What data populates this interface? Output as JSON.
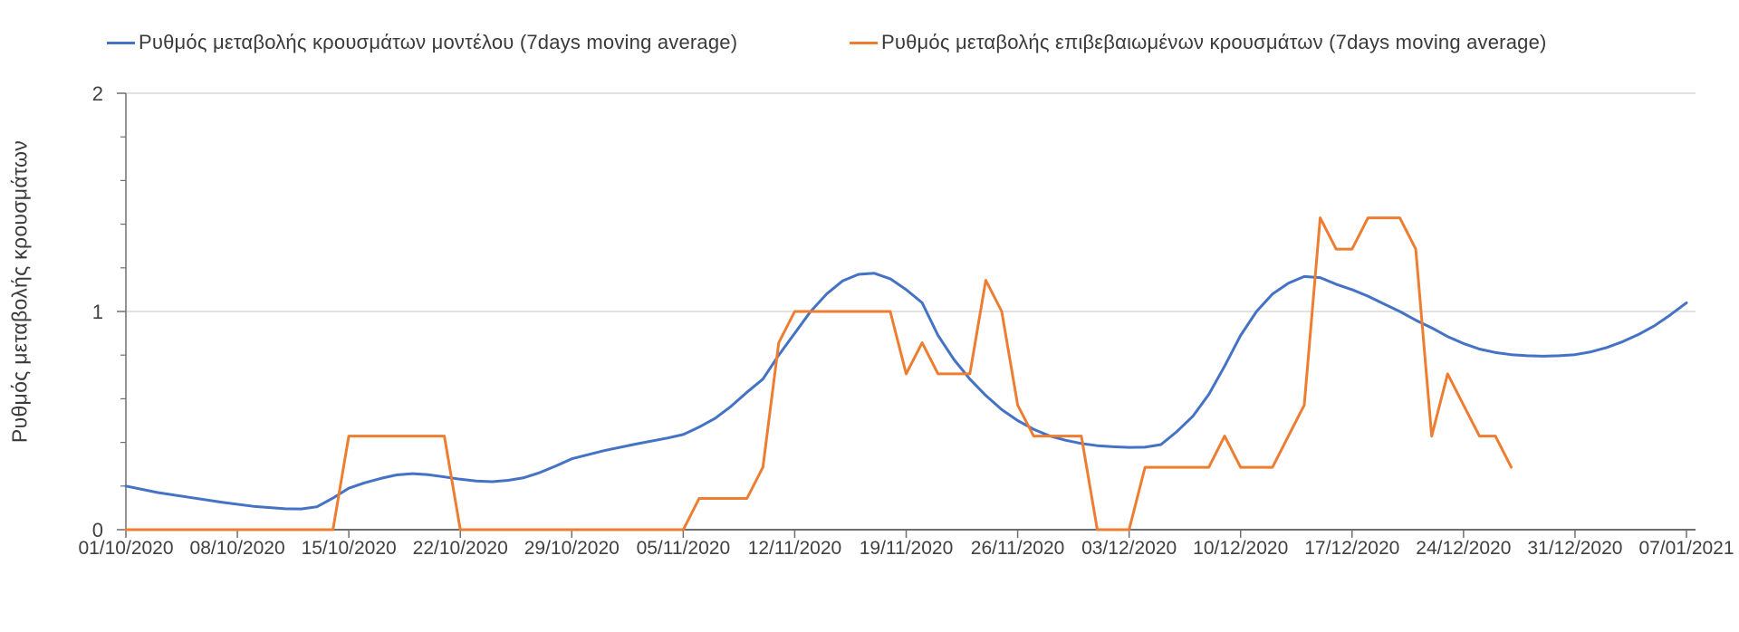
{
  "chart_data": {
    "type": "line",
    "title": "",
    "legend": [
      {
        "label": "Ρυθμός μεταβολής κρουσμάτων μοντέλου (7days moving average)",
        "color": "#4472C4"
      },
      {
        "label": "Ρυθμός μεταβολής επιβεβαιωμένων κρουσμάτων (7days moving average)",
        "color": "#ED7D31"
      }
    ],
    "x_axis": {
      "labels": [
        "01/10/2020",
        "08/10/2020",
        "15/10/2020",
        "22/10/2020",
        "29/10/2020",
        "05/11/2020",
        "12/11/2020",
        "19/11/2020",
        "26/11/2020",
        "03/12/2020",
        "10/12/2020",
        "17/12/2020",
        "24/12/2020",
        "31/12/2020",
        "07/01/2021"
      ],
      "tick_interval_days": 7,
      "day_span": 98
    },
    "y_axis": {
      "title": "Ρυθμός μεταβολής κρουσμάτων",
      "min": 0,
      "max": 2,
      "ticks": [
        {
          "value": 0,
          "label": "0"
        },
        {
          "value": 1,
          "label": "1"
        },
        {
          "value": 2,
          "label": "2"
        }
      ],
      "minor_tick_step": 0.2,
      "gridlines": [
        1,
        2
      ]
    },
    "layout": {
      "legend_position": "top",
      "grid": "horizontal-only"
    },
    "series": [
      {
        "name": "Ρυθμός μεταβολής κρουσμάτων μοντέλου (7days moving average)",
        "color": "#4472C4",
        "points": [
          [
            0,
            0.2
          ],
          [
            2,
            0.17
          ],
          [
            4,
            0.148
          ],
          [
            6,
            0.126
          ],
          [
            8,
            0.107
          ],
          [
            10,
            0.096
          ],
          [
            11,
            0.095
          ],
          [
            12,
            0.105
          ],
          [
            13,
            0.145
          ],
          [
            14,
            0.19
          ],
          [
            15,
            0.215
          ],
          [
            16,
            0.235
          ],
          [
            17,
            0.251
          ],
          [
            18,
            0.257
          ],
          [
            19,
            0.252
          ],
          [
            20,
            0.242
          ],
          [
            21,
            0.231
          ],
          [
            22,
            0.223
          ],
          [
            23,
            0.22
          ],
          [
            24,
            0.226
          ],
          [
            25,
            0.238
          ],
          [
            26,
            0.262
          ],
          [
            27,
            0.292
          ],
          [
            28,
            0.325
          ],
          [
            30,
            0.362
          ],
          [
            32,
            0.392
          ],
          [
            34,
            0.42
          ],
          [
            35,
            0.436
          ],
          [
            36,
            0.47
          ],
          [
            37,
            0.51
          ],
          [
            38,
            0.565
          ],
          [
            39,
            0.63
          ],
          [
            40,
            0.69
          ],
          [
            41,
            0.8
          ],
          [
            42,
            0.9
          ],
          [
            43,
            1.0
          ],
          [
            44,
            1.08
          ],
          [
            45,
            1.14
          ],
          [
            46,
            1.17
          ],
          [
            47,
            1.175
          ],
          [
            48,
            1.15
          ],
          [
            49,
            1.1
          ],
          [
            50,
            1.04
          ],
          [
            51,
            0.89
          ],
          [
            52,
            0.78
          ],
          [
            53,
            0.69
          ],
          [
            54,
            0.615
          ],
          [
            55,
            0.55
          ],
          [
            56,
            0.5
          ],
          [
            57,
            0.46
          ],
          [
            58,
            0.43
          ],
          [
            59,
            0.41
          ],
          [
            60,
            0.395
          ],
          [
            61,
            0.385
          ],
          [
            62,
            0.38
          ],
          [
            63,
            0.377
          ],
          [
            64,
            0.378
          ],
          [
            65,
            0.39
          ],
          [
            66,
            0.45
          ],
          [
            67,
            0.52
          ],
          [
            68,
            0.62
          ],
          [
            69,
            0.75
          ],
          [
            70,
            0.89
          ],
          [
            71,
            1.0
          ],
          [
            72,
            1.08
          ],
          [
            73,
            1.13
          ],
          [
            74,
            1.16
          ],
          [
            75,
            1.155
          ],
          [
            76,
            1.125
          ],
          [
            77,
            1.1
          ],
          [
            78,
            1.07
          ],
          [
            79,
            1.035
          ],
          [
            80,
            1.0
          ],
          [
            81,
            0.96
          ],
          [
            82,
            0.925
          ],
          [
            83,
            0.885
          ],
          [
            84,
            0.853
          ],
          [
            85,
            0.828
          ],
          [
            86,
            0.812
          ],
          [
            87,
            0.802
          ],
          [
            88,
            0.797
          ],
          [
            89,
            0.795
          ],
          [
            90,
            0.797
          ],
          [
            91,
            0.802
          ],
          [
            92,
            0.815
          ],
          [
            93,
            0.835
          ],
          [
            94,
            0.862
          ],
          [
            95,
            0.895
          ],
          [
            96,
            0.935
          ],
          [
            97,
            0.985
          ],
          [
            98,
            1.04
          ]
        ]
      },
      {
        "name": "Ρυθμός μεταβολής επιβεβαιωμένων κρουσμάτων (7days moving average)",
        "color": "#ED7D31",
        "start_day": 0,
        "values": [
          0,
          0,
          0,
          0,
          0,
          0,
          0,
          0,
          0,
          0,
          0,
          0,
          0,
          0,
          0.429,
          0.429,
          0.429,
          0.429,
          0.429,
          0.429,
          0.429,
          0,
          0,
          0,
          0,
          0,
          0,
          0,
          0,
          0,
          0,
          0,
          0,
          0,
          0,
          0,
          0.143,
          0.143,
          0.143,
          0.143,
          0.286,
          0.857,
          1,
          1,
          1,
          1,
          1,
          1,
          1,
          0.714,
          0.857,
          0.714,
          0.714,
          0.714,
          1.143,
          1,
          0.571,
          0.429,
          0.429,
          0.429,
          0.429,
          0,
          0,
          0,
          0.286,
          0.286,
          0.286,
          0.286,
          0.286,
          0.429,
          0.286,
          0.286,
          0.286,
          0.429,
          0.571,
          1.429,
          1.286,
          1.286,
          1.429,
          1.429,
          1.429,
          1.286,
          0.429,
          0.714,
          0.571,
          0.429,
          0.429,
          0.286
        ]
      }
    ],
    "style": {
      "background": "#ffffff",
      "gridline_color": "#d9d9d9",
      "axis_color": "#6e6e6e",
      "tick_label_color": "#404040",
      "series_line_width": 3
    }
  }
}
